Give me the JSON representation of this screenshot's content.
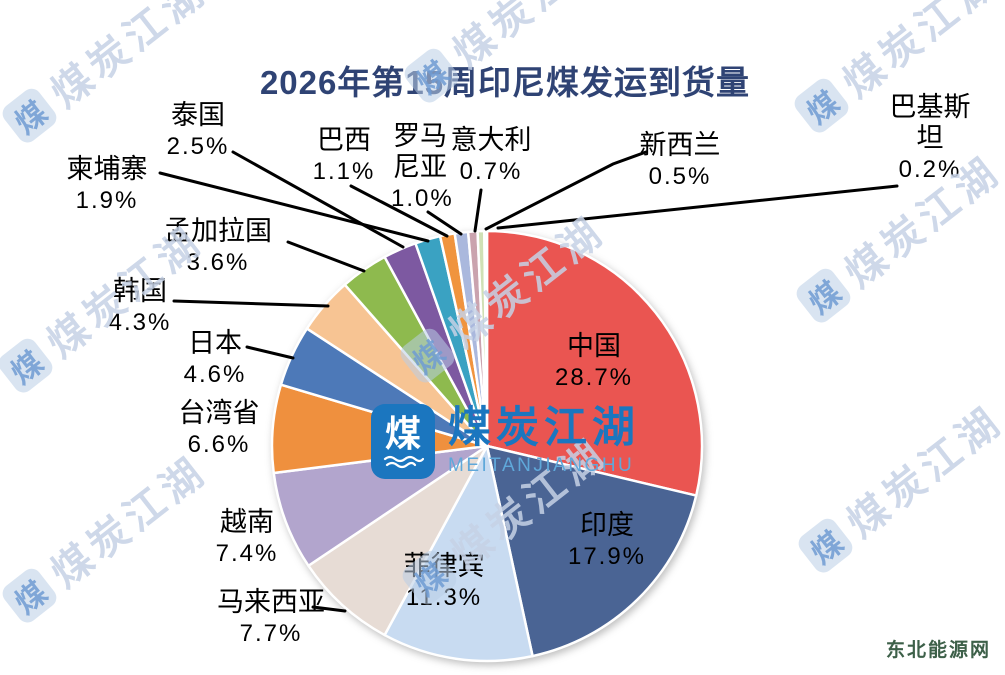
{
  "title": "2026年第15周印尼煤发运到货量",
  "chart_data": {
    "type": "pie",
    "title": "2026年第15周印尼煤发运到货量",
    "unit": "percent_of_total",
    "direction": "clockwise",
    "start_angle_deg": 0,
    "legend": "none",
    "categories": [
      "中国",
      "印度",
      "菲律宾",
      "马来西亚",
      "越南",
      "台湾省",
      "日本",
      "韩国",
      "孟加拉国",
      "泰国",
      "柬埔寨",
      "巴西",
      "罗马尼亚",
      "意大利",
      "新西兰",
      "巴基斯坦"
    ],
    "values": [
      28.7,
      17.9,
      11.3,
      7.7,
      7.4,
      6.6,
      4.6,
      4.3,
      3.6,
      2.5,
      1.9,
      1.1,
      1.0,
      0.7,
      0.5,
      0.2
    ],
    "value_labels": [
      "28.7%",
      "17.9%",
      "11.3%",
      "7.7%",
      "7.4%",
      "6.6%",
      "4.6%",
      "4.3%",
      "3.6%",
      "2.5%",
      "1.9%",
      "1.1%",
      "1.0%",
      "0.7%",
      "0.5%",
      "0.2%"
    ],
    "colors": [
      "#ea5551",
      "#4a6494",
      "#c8dbf1",
      "#e7dcd5",
      "#b2a5cd",
      "#ef903e",
      "#4d79b8",
      "#f7c493",
      "#8eba4e",
      "#7d59a1",
      "#3aa2c2",
      "#f0943e",
      "#aab8dd",
      "#caa3ae",
      "#d0e0b5",
      "#f1efed"
    ],
    "label_style": "category name above percentage; large slices labeled inside, small slices labeled outside with black leader lines"
  },
  "watermark": {
    "brand": "煤炭江湖",
    "brand_latin": "MEITANJIANGHU",
    "logo_char": "煤"
  },
  "credit": "东北能源网",
  "theme": {
    "background": "#ffffff",
    "title_color": "#2f4374",
    "label_color": "#000000",
    "leader_line_color": "#000000",
    "slice_border_color": "#ffffff",
    "watermark_color": "#c6d2e6",
    "logo_blue": "#1b76bf",
    "logo_latin_blue": "#5fa8da",
    "credit_color": "#3d6049"
  }
}
